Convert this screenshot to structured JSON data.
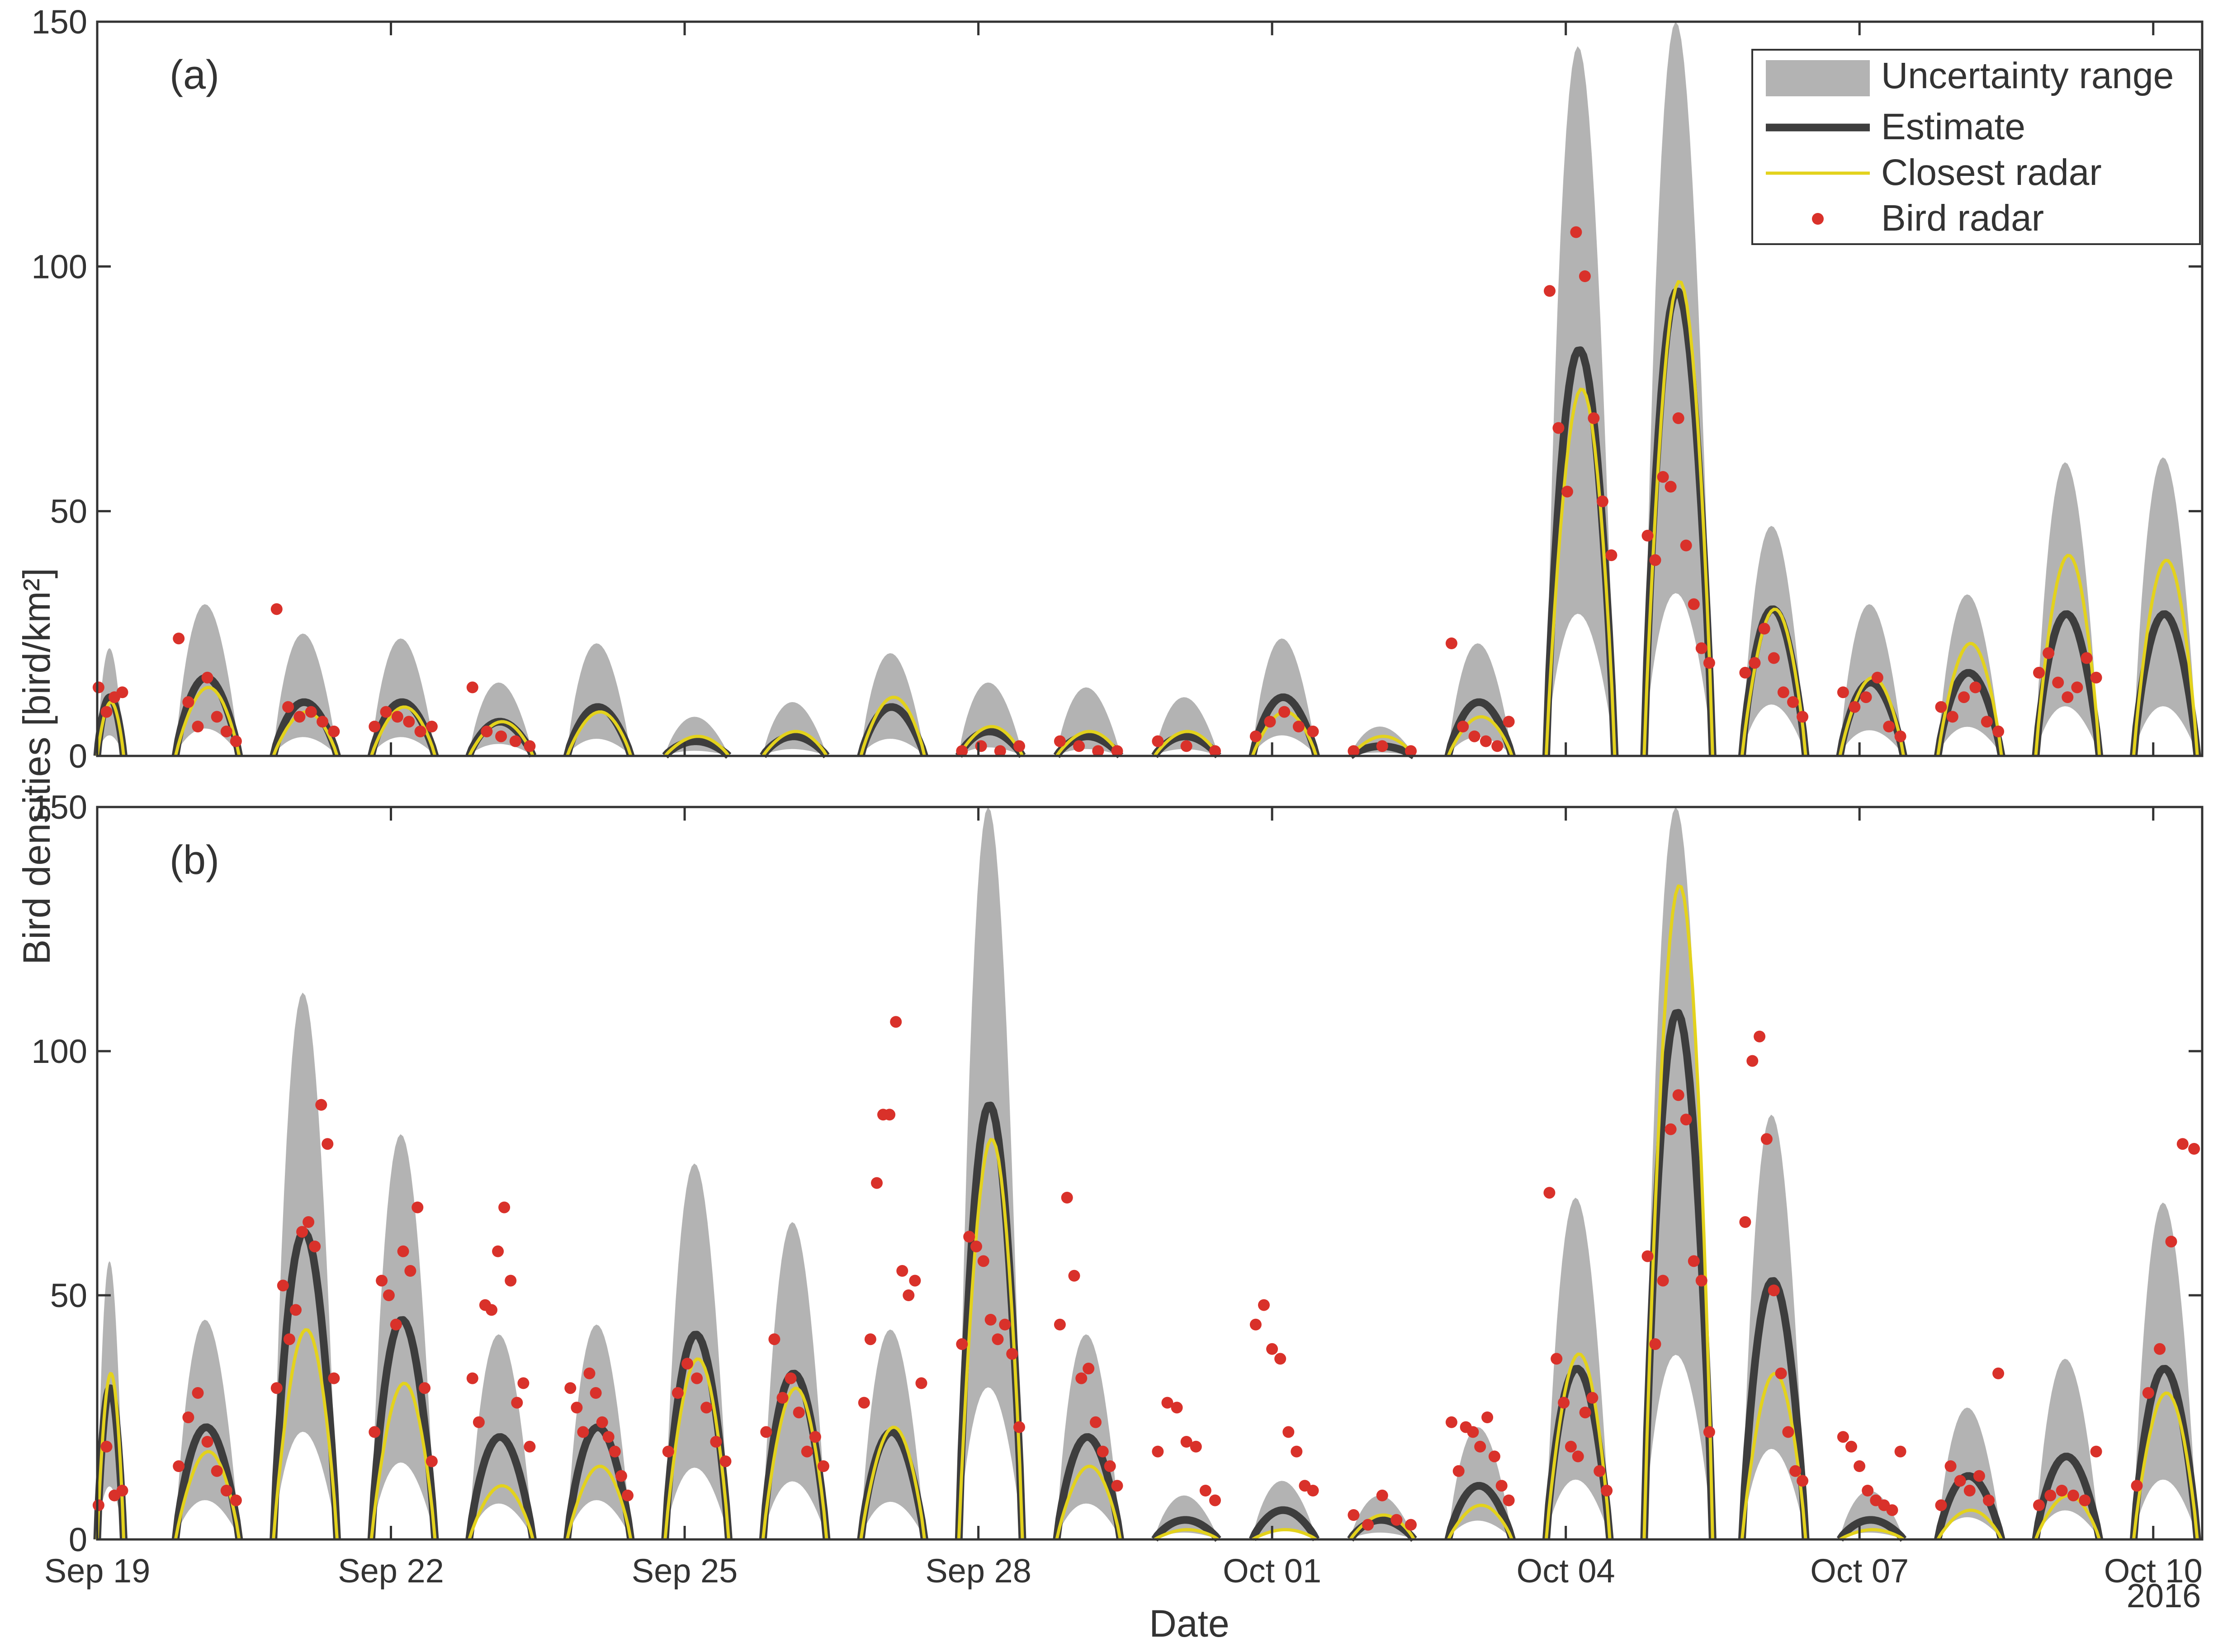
{
  "chart_data": {
    "type": "line",
    "ylabel": "Bird densities [bird/km²]",
    "xlabel": "Date",
    "x_ticks": [
      "Sep 19",
      "Sep 22",
      "Sep 25",
      "Sep 28",
      "Oct 01",
      "Oct 04",
      "Oct 07",
      "Oct 10"
    ],
    "x_year_label": "2016",
    "xlim_days": [
      0,
      21.5
    ],
    "ylim": [
      0,
      150
    ],
    "y_ticks": [
      0,
      50,
      100,
      150
    ],
    "grid": false,
    "legend_placement": "top-right",
    "legend": [
      "Uncertainty range",
      "Estimate",
      "Closest radar",
      "Bird radar"
    ],
    "colors": {
      "uncertainty": "#b3b3b3",
      "estimate": "#3d3d3d",
      "closest_radar": "#e3d21c",
      "bird_radar": "#d9312a",
      "axis": "#333333"
    },
    "panels": [
      {
        "label": "(a)",
        "nights": [
          {
            "start": 0.0,
            "end": 0.27,
            "estimate_peak": 12,
            "closest_peak": 11,
            "upper_peak": 22,
            "bird_radar": [
              14,
              9,
              12,
              13
            ]
          },
          {
            "start": 0.8,
            "end": 1.45,
            "estimate_peak": 16,
            "closest_peak": 14,
            "upper_peak": 31,
            "bird_radar": [
              24,
              11,
              6,
              16,
              8,
              5,
              3
            ]
          },
          {
            "start": 1.8,
            "end": 2.45,
            "estimate_peak": 11,
            "closest_peak": 9,
            "upper_peak": 25,
            "bird_radar": [
              30,
              10,
              8,
              9,
              7,
              5
            ]
          },
          {
            "start": 2.8,
            "end": 3.45,
            "estimate_peak": 11,
            "closest_peak": 10,
            "upper_peak": 24,
            "bird_radar": [
              6,
              9,
              8,
              7,
              5,
              6
            ]
          },
          {
            "start": 3.8,
            "end": 4.45,
            "estimate_peak": 7,
            "closest_peak": 7,
            "upper_peak": 15,
            "bird_radar": [
              14,
              5,
              4,
              3,
              2
            ]
          },
          {
            "start": 4.8,
            "end": 5.45,
            "estimate_peak": 10,
            "closest_peak": 9,
            "upper_peak": 23,
            "bird_radar": []
          },
          {
            "start": 5.8,
            "end": 6.45,
            "estimate_peak": 3,
            "closest_peak": 4,
            "upper_peak": 8,
            "bird_radar": []
          },
          {
            "start": 6.8,
            "end": 7.45,
            "estimate_peak": 4,
            "closest_peak": 5,
            "upper_peak": 11,
            "bird_radar": []
          },
          {
            "start": 7.8,
            "end": 8.45,
            "estimate_peak": 10,
            "closest_peak": 12,
            "upper_peak": 21,
            "bird_radar": []
          },
          {
            "start": 8.8,
            "end": 9.45,
            "estimate_peak": 5,
            "closest_peak": 6,
            "upper_peak": 15,
            "bird_radar": [
              1,
              2,
              1,
              2
            ]
          },
          {
            "start": 9.8,
            "end": 10.45,
            "estimate_peak": 4,
            "closest_peak": 5,
            "upper_peak": 14,
            "bird_radar": [
              3,
              2,
              1,
              1
            ]
          },
          {
            "start": 10.8,
            "end": 11.45,
            "estimate_peak": 4,
            "closest_peak": 5,
            "upper_peak": 12,
            "bird_radar": [
              3,
              2,
              1
            ]
          },
          {
            "start": 11.8,
            "end": 12.45,
            "estimate_peak": 12,
            "closest_peak": 9,
            "upper_peak": 24,
            "bird_radar": [
              4,
              7,
              9,
              6,
              5
            ]
          },
          {
            "start": 12.8,
            "end": 13.45,
            "estimate_peak": 2,
            "closest_peak": 4,
            "upper_peak": 6,
            "bird_radar": [
              1,
              2,
              1
            ]
          },
          {
            "start": 13.8,
            "end": 14.45,
            "estimate_peak": 11,
            "closest_peak": 8,
            "upper_peak": 23,
            "bird_radar": [
              23,
              6,
              4,
              3,
              2,
              7
            ]
          },
          {
            "start": 14.8,
            "end": 15.5,
            "estimate_peak": 83,
            "closest_peak": 75,
            "upper_peak": 145,
            "bird_radar": [
              95,
              67,
              54,
              107,
              98,
              69,
              52,
              41
            ]
          },
          {
            "start": 15.8,
            "end": 16.5,
            "estimate_peak": 95,
            "closest_peak": 97,
            "upper_peak": 150,
            "bird_radar": [
              45,
              40,
              57,
              55,
              69,
              43,
              31,
              22,
              19
            ]
          },
          {
            "start": 16.8,
            "end": 17.45,
            "estimate_peak": 30,
            "closest_peak": 30,
            "upper_peak": 47,
            "bird_radar": [
              17,
              19,
              26,
              20,
              13,
              11,
              8
            ]
          },
          {
            "start": 17.8,
            "end": 18.45,
            "estimate_peak": 15,
            "closest_peak": 16,
            "upper_peak": 31,
            "bird_radar": [
              13,
              10,
              12,
              16,
              6,
              4
            ]
          },
          {
            "start": 18.8,
            "end": 19.45,
            "estimate_peak": 17,
            "closest_peak": 23,
            "upper_peak": 33,
            "bird_radar": [
              10,
              8,
              12,
              14,
              7,
              5
            ]
          },
          {
            "start": 19.8,
            "end": 20.45,
            "estimate_peak": 29,
            "closest_peak": 41,
            "upper_peak": 60,
            "bird_radar": [
              17,
              21,
              15,
              12,
              14,
              20,
              16
            ]
          },
          {
            "start": 20.8,
            "end": 21.45,
            "estimate_peak": 29,
            "closest_peak": 40,
            "upper_peak": 61,
            "bird_radar": []
          }
        ]
      },
      {
        "label": "(b)",
        "nights": [
          {
            "start": 0.0,
            "end": 0.27,
            "estimate_peak": 31,
            "closest_peak": 34,
            "upper_peak": 57,
            "bird_radar": [
              7,
              19,
              9,
              10
            ]
          },
          {
            "start": 0.8,
            "end": 1.45,
            "estimate_peak": 23,
            "closest_peak": 18,
            "upper_peak": 45,
            "bird_radar": [
              15,
              25,
              30,
              20,
              14,
              10,
              8
            ]
          },
          {
            "start": 1.8,
            "end": 2.45,
            "estimate_peak": 63,
            "closest_peak": 43,
            "upper_peak": 112,
            "bird_radar": [
              31,
              52,
              41,
              47,
              63,
              65,
              60,
              89,
              81,
              33
            ]
          },
          {
            "start": 2.8,
            "end": 3.45,
            "estimate_peak": 45,
            "closest_peak": 32,
            "upper_peak": 83,
            "bird_radar": [
              22,
              53,
              50,
              44,
              59,
              55,
              68,
              31,
              16
            ]
          },
          {
            "start": 3.8,
            "end": 4.45,
            "estimate_peak": 21,
            "closest_peak": 11,
            "upper_peak": 42,
            "bird_radar": [
              33,
              24,
              48,
              47,
              59,
              68,
              53,
              28,
              32,
              19
            ]
          },
          {
            "start": 4.8,
            "end": 5.45,
            "estimate_peak": 23,
            "closest_peak": 15,
            "upper_peak": 44,
            "bird_radar": [
              31,
              27,
              22,
              34,
              30,
              24,
              21,
              18,
              13,
              9
            ]
          },
          {
            "start": 5.8,
            "end": 6.45,
            "estimate_peak": 42,
            "closest_peak": 37,
            "upper_peak": 77,
            "bird_radar": [
              18,
              30,
              36,
              33,
              27,
              20,
              16
            ]
          },
          {
            "start": 6.8,
            "end": 7.45,
            "estimate_peak": 34,
            "closest_peak": 31,
            "upper_peak": 65,
            "bird_radar": [
              22,
              41,
              29,
              33,
              26,
              18,
              21,
              15
            ]
          },
          {
            "start": 7.8,
            "end": 8.45,
            "estimate_peak": 22,
            "closest_peak": 23,
            "upper_peak": 43,
            "bird_radar": [
              28,
              41,
              73,
              87,
              87,
              106,
              55,
              50,
              53,
              32
            ]
          },
          {
            "start": 8.8,
            "end": 9.45,
            "estimate_peak": 89,
            "closest_peak": 82,
            "upper_peak": 150,
            "bird_radar": [
              40,
              62,
              60,
              57,
              45,
              41,
              44,
              38,
              23
            ]
          },
          {
            "start": 9.8,
            "end": 10.45,
            "estimate_peak": 21,
            "closest_peak": 15,
            "upper_peak": 42,
            "bird_radar": [
              44,
              70,
              54,
              33,
              35,
              24,
              18,
              15,
              11
            ]
          },
          {
            "start": 10.8,
            "end": 11.45,
            "estimate_peak": 4,
            "closest_peak": 2,
            "upper_peak": 9,
            "bird_radar": [
              18,
              28,
              27,
              20,
              19,
              10,
              8
            ]
          },
          {
            "start": 11.8,
            "end": 12.45,
            "estimate_peak": 6,
            "closest_peak": 2,
            "upper_peak": 12,
            "bird_radar": [
              44,
              48,
              39,
              37,
              22,
              18,
              11,
              10
            ]
          },
          {
            "start": 12.8,
            "end": 13.45,
            "estimate_peak": 4,
            "closest_peak": 5,
            "upper_peak": 9,
            "bird_radar": [
              5,
              3,
              9,
              4,
              3
            ]
          },
          {
            "start": 13.8,
            "end": 14.45,
            "estimate_peak": 11,
            "closest_peak": 7,
            "upper_peak": 23,
            "bird_radar": [
              24,
              14,
              23,
              22,
              19,
              25,
              17,
              11,
              8
            ]
          },
          {
            "start": 14.8,
            "end": 15.45,
            "estimate_peak": 35,
            "closest_peak": 38,
            "upper_peak": 70,
            "bird_radar": [
              71,
              37,
              28,
              19,
              17,
              26,
              29,
              14,
              10
            ]
          },
          {
            "start": 15.8,
            "end": 16.5,
            "estimate_peak": 108,
            "closest_peak": 134,
            "upper_peak": 150,
            "bird_radar": [
              58,
              40,
              53,
              84,
              91,
              86,
              57,
              53,
              22
            ]
          },
          {
            "start": 16.8,
            "end": 17.45,
            "estimate_peak": 53,
            "closest_peak": 34,
            "upper_peak": 87,
            "bird_radar": [
              65,
              98,
              103,
              82,
              51,
              34,
              22,
              14,
              12
            ]
          },
          {
            "start": 17.8,
            "end": 18.45,
            "estimate_peak": 4,
            "closest_peak": 2,
            "upper_peak": 10,
            "bird_radar": [
              21,
              19,
              15,
              10,
              8,
              7,
              6,
              18
            ]
          },
          {
            "start": 18.8,
            "end": 19.45,
            "estimate_peak": 13,
            "closest_peak": 6,
            "upper_peak": 27,
            "bird_radar": [
              7,
              15,
              12,
              10,
              13,
              8,
              34
            ]
          },
          {
            "start": 19.8,
            "end": 20.45,
            "estimate_peak": 17,
            "closest_peak": 9,
            "upper_peak": 37,
            "bird_radar": [
              7,
              9,
              10,
              9,
              8,
              18
            ]
          },
          {
            "start": 20.8,
            "end": 21.45,
            "estimate_peak": 35,
            "closest_peak": 30,
            "upper_peak": 69,
            "bird_radar": [
              11,
              30,
              39,
              61,
              81,
              80
            ]
          }
        ]
      }
    ]
  }
}
